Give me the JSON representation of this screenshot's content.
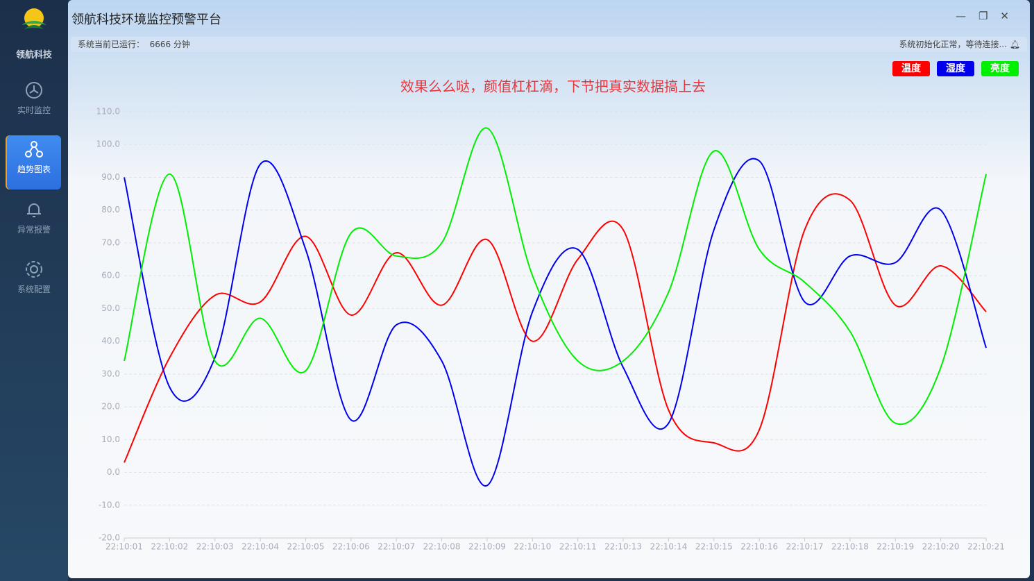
{
  "sidebar": {
    "brand": "领航科技",
    "nav": [
      "实时监控",
      "趋势图表",
      "异常报警",
      "系统配置"
    ]
  },
  "header": {
    "title": "领航科技环境监控预警平台"
  },
  "status": {
    "runtime_label": "系统当前已运行：",
    "runtime_value": 6666,
    "runtime_unit": "分钟",
    "message": "系统初始化正常，等待连接..."
  },
  "chart_data": {
    "type": "line",
    "title": "效果么么哒，颜值杠杠滴，下节把真实数据搞上去",
    "categories": [
      "22:10:01",
      "22:10:02",
      "22:10:03",
      "22:10:04",
      "22:10:05",
      "22:10:06",
      "22:10:07",
      "22:10:08",
      "22:10:09",
      "22:10:10",
      "22:10:11",
      "22:10:13",
      "22:10:14",
      "22:10:15",
      "22:10:16",
      "22:10:17",
      "22:10:18",
      "22:10:19",
      "22:10:20",
      "22:10:21"
    ],
    "series": [
      {
        "name": "温度",
        "color": "#ff0000",
        "values": [
          3,
          35,
          54,
          52,
          72,
          48,
          67,
          51,
          71,
          40,
          65,
          74,
          19,
          9,
          13,
          74,
          83,
          51,
          63,
          49
        ]
      },
      {
        "name": "湿度",
        "color": "#0000ee",
        "values": [
          90,
          26,
          35,
          94,
          68,
          16,
          45,
          34,
          -4,
          49,
          68,
          32,
          15,
          74,
          95,
          52,
          66,
          64,
          80,
          38
        ]
      },
      {
        "name": "亮度",
        "color": "#00ee00",
        "values": [
          34,
          91,
          34,
          47,
          31,
          73,
          66,
          70,
          105,
          60,
          34,
          34,
          55,
          98,
          68,
          58,
          43,
          15,
          32,
          91
        ]
      }
    ],
    "ylim": [
      -20,
      110
    ],
    "yticks": [
      {
        "value": -20,
        "label": "-20.0"
      },
      {
        "value": -10,
        "label": "-10.0"
      },
      {
        "value": 0,
        "label": "0.0"
      },
      {
        "value": 10,
        "label": "10.0"
      },
      {
        "value": 20,
        "label": "20.0"
      },
      {
        "value": 30,
        "label": "30.0"
      },
      {
        "value": 40,
        "label": "40.0"
      },
      {
        "value": 50,
        "label": "50.0"
      },
      {
        "value": 60,
        "label": "60.0"
      },
      {
        "value": 70,
        "label": "70.0"
      },
      {
        "value": 80,
        "label": "80.0"
      },
      {
        "value": 90,
        "label": "90.0"
      },
      {
        "value": 100,
        "label": "100.0"
      },
      {
        "value": 110,
        "label": "110.0"
      }
    ],
    "grid": true,
    "smooth": true,
    "legend": "top-right"
  }
}
